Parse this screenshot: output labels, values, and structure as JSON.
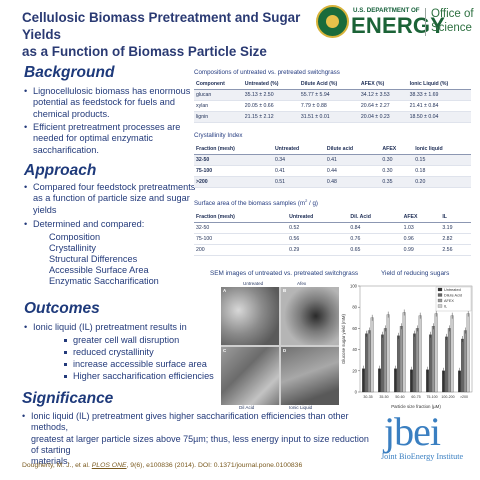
{
  "header": {
    "title_line1": "Cellulosic Biomass Pretreatment and Sugar Yields",
    "title_line2": "as a Function of Biomass Particle Size",
    "doe_small": "U.S. DEPARTMENT OF",
    "doe_big": "ENERGY",
    "office_line1": "Office of",
    "office_line2": "Science"
  },
  "background": {
    "heading": "Background",
    "bullets": [
      [
        "Lignocellulosic biomass has enormous",
        "potential as feedstock for fuels and",
        "chemical products."
      ],
      [
        "Efficient pretreatment processes are",
        "needed for optimal enzymatic",
        "saccharification."
      ]
    ]
  },
  "approach": {
    "heading": "Approach",
    "bullet1": [
      "Compared four feedstock pretreatments",
      "as a function of particle size and sugar",
      "yields"
    ],
    "bullet2": "Determined and compared:",
    "sub_items": [
      "Composition",
      "Crystallinity",
      "Structural Differences",
      "Accessible Surface Area",
      "Enzymatic Saccharification"
    ]
  },
  "outcomes": {
    "heading": "Outcomes",
    "bullet": "Ionic liquid (IL) pretreatment results in",
    "sub_items": [
      "greater cell wall disruption",
      "reduced crystallinity",
      "increase accessible surface area",
      "Higher saccharification efficiencies"
    ]
  },
  "significance": {
    "heading": "Significance",
    "lines": [
      "Ionic liquid (IL) pretreatment gives higher saccharification efficiencies than other methods,",
      "greatest at larger particle sizes above 75µm; thus, less energy input to size reduction of starting",
      "materials."
    ]
  },
  "reference": {
    "authors": "Dougherty, M. J., et al.",
    "journal": "PLOS ONE",
    "rest": ", 9(6), e100836 (2014). DOI: 0.1371/journal.pone.0100836"
  },
  "jbei": {
    "logo": "jbei",
    "sub": "Joint BioEnergy Institute"
  },
  "table1": {
    "title": "Compositions of untreated vs. pretreated switchgrass",
    "headers": [
      "Component",
      "Untreated (%)",
      "Dilute Acid (%)",
      "AFEX (%)",
      "Ionic Liquid (%)"
    ],
    "rows": [
      [
        "glucan",
        "35.13 ± 2.50",
        "55.77 ± 5.94",
        "34.12 ± 3.53",
        "38.33 ± 1.69"
      ],
      [
        "xylan",
        "20.05 ± 0.66",
        "7.79 ± 0.88",
        "20.64 ± 2.27",
        "21.41 ± 0.84"
      ],
      [
        "lignin",
        "21.15 ± 2.12",
        "31.51 ± 0.01",
        "20.04 ± 0.23",
        "18.50 ± 0.04"
      ]
    ]
  },
  "table2": {
    "title": "Crystallinity Index",
    "headers": [
      "Fraction (mesh)",
      "Untreated",
      "Dilute acid",
      "AFEX",
      "Ionic liquid"
    ],
    "rows": [
      [
        "32-50",
        "0.34",
        "0.41",
        "0.30",
        "0.15"
      ],
      [
        "75-100",
        "0.41",
        "0.44",
        "0.30",
        "0.18"
      ],
      [
        ">200",
        "0.51",
        "0.48",
        "0.35",
        "0.20"
      ]
    ]
  },
  "table3": {
    "title_main": "Surface area of the biomass samples (m",
    "title_sup": "2",
    "title_end": " / g)",
    "headers": [
      "Fraction (mesh)",
      "Untreated",
      "Dil. Acid",
      "AFEX",
      "IL"
    ],
    "rows": [
      [
        "32-50",
        "0.52",
        "0.84",
        "1.03",
        "3.19"
      ],
      [
        "75-100",
        "0.56",
        "0.76",
        "0.96",
        "2.82"
      ],
      [
        "200",
        "0.29",
        "0.65",
        "0.99",
        "2.56"
      ]
    ]
  },
  "sem": {
    "title": "SEM images of untreated vs. pretreated switchgrass",
    "caption_untreated": "Untreated",
    "caption_afex": "Afex",
    "caption_dilacid": "Dil Acid",
    "caption_il": "Ionic Liquid",
    "labels": [
      "A",
      "B",
      "C",
      "D"
    ]
  },
  "chart_data": {
    "type": "bar",
    "title": "Yield of reducing sugars",
    "xlabel": "Particle size fraction (µM)",
    "ylabel": "Glucose sugar yield (mM)",
    "ylim": [
      0,
      100
    ],
    "yticks": [
      0,
      20,
      40,
      60,
      80,
      100
    ],
    "categories": [
      "30-35",
      "35-50",
      "50-60",
      "60-75",
      "75-100",
      "100-200",
      ">200"
    ],
    "series": [
      {
        "name": "Untreated",
        "color": "#333333",
        "values": [
          22,
          22,
          22,
          21,
          21,
          20,
          20
        ]
      },
      {
        "name": "Dilute Acid",
        "color": "#666666",
        "values": [
          55,
          54,
          53,
          55,
          54,
          52,
          50
        ]
      },
      {
        "name": "AFEX",
        "color": "#999999",
        "values": [
          58,
          60,
          62,
          60,
          62,
          60,
          58
        ]
      },
      {
        "name": "IL",
        "color": "#cccccc",
        "values": [
          70,
          73,
          75,
          72,
          74,
          72,
          74
        ]
      }
    ],
    "legend_position": "top-right"
  },
  "colors": {
    "title": "#2a3a73",
    "heading": "#1e3a7b",
    "doe_green": "#1b6337",
    "jbei_blue": "#3a7fc1"
  }
}
